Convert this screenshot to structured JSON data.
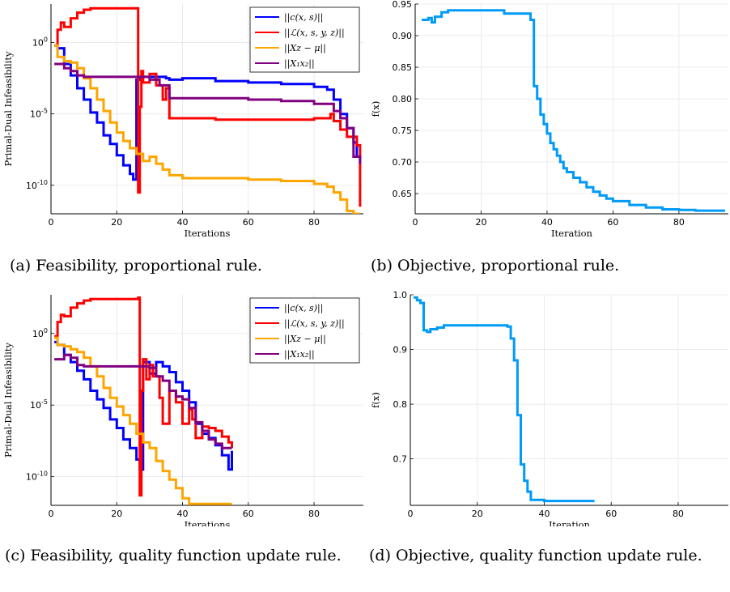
{
  "captions": {
    "a": "(a) Feasibility, proportional rule.",
    "b": "(b) Objective, proportional rule.",
    "c": "(c) Feasibility, quality function update rule.",
    "d": "(d) Objective, quality function update rule."
  },
  "chart_data": [
    {
      "id": "a",
      "type": "line",
      "step": true,
      "xlabel": "Iterations",
      "ylabel": "Primal-Dual Infeasibility",
      "yscale": "log",
      "xlim": [
        0,
        95
      ],
      "xticks": [
        "0",
        "20",
        "40",
        "60",
        "80"
      ],
      "ylim_log10": [
        -12,
        2.7
      ],
      "yticks": [
        {
          "value": 0,
          "label": "10^0"
        },
        {
          "value": -5,
          "label": "10^-5"
        },
        {
          "value": -10,
          "label": "10^-10"
        }
      ],
      "grid": true,
      "legend": "top-right",
      "series": [
        {
          "name": "||c(x, s)||",
          "color": "#0000ff",
          "x": [
            1,
            2,
            4,
            6,
            8,
            10,
            12,
            14,
            16,
            18,
            20,
            22,
            24,
            25,
            26,
            27,
            30,
            35,
            36,
            40,
            50,
            60,
            70,
            80,
            84,
            86,
            88,
            90,
            92,
            93,
            94
          ],
          "y_log10": [
            -0.2,
            -0.4,
            -1.5,
            -2.3,
            -3.2,
            -4.0,
            -4.9,
            -5.6,
            -6.5,
            -7.1,
            -7.9,
            -8.6,
            -9.2,
            -9.6,
            -2.6,
            -2.4,
            -2.4,
            -2.5,
            -2.6,
            -2.5,
            -2.7,
            -2.8,
            -2.9,
            -3.1,
            -3.3,
            -4.0,
            -5.0,
            -6.0,
            -7.0,
            -8.0,
            -8.5
          ]
        },
        {
          "name": "||ℒ(x, s, y, z)||",
          "color": "#ff0000",
          "x": [
            1,
            2,
            3,
            4,
            6,
            8,
            10,
            12,
            15,
            20,
            24,
            26,
            26.5,
            27,
            27.5,
            28,
            30,
            32,
            34,
            35,
            36,
            40,
            50,
            60,
            70,
            80,
            85,
            86,
            88,
            90,
            92,
            93,
            94
          ],
          "y_log10": [
            -0.2,
            0.9,
            1.4,
            1.1,
            1.7,
            2.1,
            2.3,
            2.4,
            2.4,
            2.4,
            2.4,
            2.4,
            -10.5,
            -4.5,
            -2.0,
            -2.8,
            -2.2,
            -3.0,
            -4.0,
            -3.2,
            -5.3,
            -5.3,
            -5.4,
            -5.4,
            -5.4,
            -5.3,
            -5.0,
            -5.5,
            -6.1,
            -6.6,
            -6.6,
            -7.2,
            -11.5
          ]
        },
        {
          "name": "||Xz − μ||",
          "color": "#ffa500",
          "x": [
            1,
            2,
            4,
            6,
            8,
            10,
            12,
            14,
            16,
            18,
            20,
            22,
            24,
            26,
            28,
            30,
            32,
            34,
            36,
            40,
            50,
            60,
            70,
            80,
            84,
            86,
            88,
            90,
            92,
            94
          ],
          "y_log10": [
            -0.2,
            -1.0,
            -1.3,
            -1.4,
            -1.8,
            -2.5,
            -3.2,
            -4.0,
            -4.8,
            -5.6,
            -6.3,
            -6.9,
            -7.4,
            -7.8,
            -8.3,
            -8.0,
            -8.5,
            -8.9,
            -9.3,
            -9.5,
            -9.5,
            -9.6,
            -9.7,
            -9.9,
            -10.1,
            -10.5,
            -11.0,
            -11.8,
            -12.0,
            -12.0
          ]
        },
        {
          "name": "||X₁x₂||",
          "color": "#800080",
          "x": [
            1,
            4,
            6,
            8,
            10,
            15,
            20,
            25,
            30,
            33,
            36,
            40,
            50,
            60,
            70,
            80,
            86,
            88,
            90,
            92,
            94
          ],
          "y_log10": [
            -1.5,
            -1.8,
            -2.0,
            -2.3,
            -2.4,
            -2.4,
            -2.4,
            -2.4,
            -2.6,
            -3.0,
            -3.9,
            -3.9,
            -3.9,
            -4.0,
            -4.1,
            -4.3,
            -4.8,
            -5.3,
            -6.0,
            -8.0,
            -8.5
          ]
        }
      ]
    },
    {
      "id": "b",
      "type": "line",
      "step": true,
      "xlabel": "Iteration",
      "ylabel": "f(x)",
      "xlim": [
        0,
        95
      ],
      "xticks": [
        "0",
        "20",
        "40",
        "60",
        "80"
      ],
      "ylim": [
        0.618,
        0.95
      ],
      "yticks": [
        "0.65",
        "0.70",
        "0.75",
        "0.80",
        "0.85",
        "0.90",
        "0.95"
      ],
      "grid": true,
      "series": [
        {
          "color": "#009af9",
          "x": [
            2,
            4,
            5,
            6,
            8,
            10,
            15,
            20,
            25,
            27,
            30,
            33,
            35,
            36,
            37,
            38,
            39,
            40,
            41,
            42,
            43,
            44,
            45,
            46,
            48,
            50,
            52,
            54,
            56,
            58,
            60,
            65,
            70,
            75,
            80,
            85,
            94
          ],
          "y": [
            0.925,
            0.928,
            0.921,
            0.93,
            0.937,
            0.94,
            0.94,
            0.94,
            0.94,
            0.935,
            0.935,
            0.935,
            0.925,
            0.82,
            0.8,
            0.775,
            0.76,
            0.745,
            0.73,
            0.72,
            0.71,
            0.7,
            0.69,
            0.684,
            0.675,
            0.668,
            0.66,
            0.653,
            0.647,
            0.642,
            0.638,
            0.632,
            0.628,
            0.625,
            0.624,
            0.623,
            0.623
          ]
        }
      ]
    },
    {
      "id": "c",
      "type": "line",
      "step": true,
      "xlabel": "Iterations",
      "ylabel": "Primal-Dual Infeasibility",
      "yscale": "log",
      "xlim": [
        0,
        95
      ],
      "xticks": [
        "0",
        "20",
        "40",
        "60",
        "80"
      ],
      "ylim_log10": [
        -12,
        2.7
      ],
      "yticks": [
        {
          "value": 0,
          "label": "10^0"
        },
        {
          "value": -5,
          "label": "10^-5"
        },
        {
          "value": -10,
          "label": "10^-10"
        }
      ],
      "grid": true,
      "legend": "top-right",
      "series": [
        {
          "name": "||c(x, s)||",
          "color": "#0000ff",
          "x": [
            1,
            2,
            4,
            6,
            8,
            10,
            12,
            14,
            16,
            18,
            20,
            22,
            24,
            26,
            27,
            28,
            30,
            32,
            34,
            36,
            38,
            40,
            42,
            44,
            46,
            48,
            50,
            52,
            54,
            55
          ],
          "y_log10": [
            -0.6,
            -0.8,
            -1.5,
            -2.0,
            -2.6,
            -3.2,
            -4.0,
            -4.6,
            -5.2,
            -6.0,
            -6.6,
            -7.4,
            -8.0,
            -8.8,
            -9.5,
            -2.0,
            -2.8,
            -2.0,
            -2.3,
            -2.7,
            -3.4,
            -4.0,
            -4.8,
            -6.3,
            -7.0,
            -7.3,
            -7.8,
            -8.5,
            -9.5,
            -8.2
          ]
        },
        {
          "name": "||ℒ(x, s, y, z)||",
          "color": "#ff0000",
          "x": [
            1,
            2,
            3,
            4,
            6,
            8,
            10,
            12,
            15,
            20,
            25,
            26.5,
            27,
            27.5,
            28,
            29,
            30,
            31,
            33,
            34,
            36,
            38,
            40,
            42,
            43,
            44,
            46,
            48,
            50,
            52,
            54,
            55
          ],
          "y_log10": [
            -0.2,
            0.8,
            1.3,
            1.2,
            1.8,
            2.1,
            2.3,
            2.4,
            2.4,
            2.4,
            2.4,
            2.5,
            -11.3,
            -4.0,
            -1.8,
            -3.2,
            -2.2,
            -3.0,
            -4.5,
            -6.3,
            -4.0,
            -4.8,
            -6.3,
            -5.3,
            -6.0,
            -7.3,
            -6.5,
            -6.6,
            -6.8,
            -7.2,
            -7.6,
            -8.0
          ]
        },
        {
          "name": "||Xz − μ||",
          "color": "#ffa500",
          "x": [
            1,
            2,
            4,
            6,
            8,
            10,
            12,
            14,
            16,
            18,
            20,
            22,
            24,
            26,
            28,
            30,
            32,
            34,
            36,
            38,
            40,
            42,
            55
          ],
          "y_log10": [
            -0.3,
            -0.8,
            -0.9,
            -1.1,
            -1.3,
            -1.7,
            -2.3,
            -3.0,
            -3.8,
            -4.5,
            -5.1,
            -5.7,
            -6.3,
            -7.0,
            -7.6,
            -8.0,
            -8.9,
            -9.6,
            -10.2,
            -10.8,
            -11.5,
            -11.9,
            -11.9
          ]
        },
        {
          "name": "||X₁x₂||",
          "color": "#800080",
          "x": [
            1,
            4,
            6,
            8,
            10,
            15,
            20,
            25,
            28,
            30,
            32,
            34,
            36,
            38,
            40,
            42,
            44,
            46,
            48,
            50,
            52,
            55
          ],
          "y_log10": [
            -1.8,
            -1.5,
            -1.7,
            -2.2,
            -2.3,
            -2.3,
            -2.3,
            -2.3,
            -2.3,
            -2.4,
            -3.0,
            -3.3,
            -4.0,
            -4.4,
            -4.6,
            -5.2,
            -6.2,
            -6.8,
            -7.4,
            -7.7,
            -8.0,
            -8.0
          ]
        }
      ]
    },
    {
      "id": "d",
      "type": "line",
      "step": true,
      "xlabel": "Iteration",
      "ylabel": "f(x)",
      "xlim": [
        0,
        95
      ],
      "xticks": [
        "0",
        "20",
        "40",
        "60",
        "80"
      ],
      "ylim": [
        0.615,
        1.0
      ],
      "yticks": [
        "0.7",
        "0.8",
        "0.9",
        "1.0"
      ],
      "grid": true,
      "series": [
        {
          "color": "#009af9",
          "x": [
            1,
            2,
            3,
            4,
            5,
            6,
            8,
            10,
            15,
            20,
            25,
            29,
            30,
            31,
            32,
            33,
            34,
            35,
            36,
            40,
            45,
            50,
            55
          ],
          "y": [
            0.995,
            0.99,
            0.985,
            0.935,
            0.932,
            0.937,
            0.94,
            0.944,
            0.944,
            0.944,
            0.944,
            0.942,
            0.92,
            0.88,
            0.78,
            0.69,
            0.66,
            0.64,
            0.625,
            0.623,
            0.623,
            0.623,
            0.623
          ]
        }
      ]
    }
  ]
}
